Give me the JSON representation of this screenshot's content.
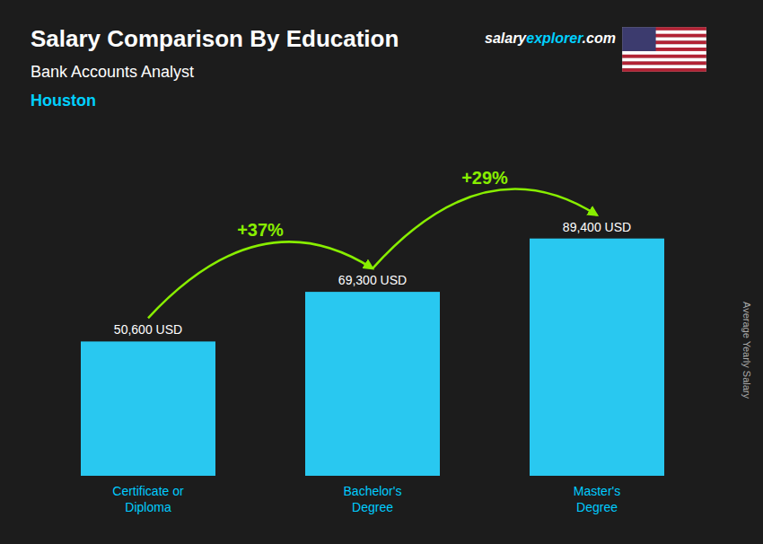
{
  "chart_data": {
    "type": "bar",
    "title": "Salary Comparison By Education",
    "subtitle": "Bank Accounts Analyst",
    "ylabel": "Average Yearly Salary",
    "categories": [
      "Certificate or\nDiploma",
      "Bachelor's\nDegree",
      "Master's\nDegree"
    ],
    "values": [
      50600,
      69300,
      89400
    ],
    "value_labels": [
      "50,600 USD",
      "69,300 USD",
      "89,400 USD"
    ],
    "data_labels": true,
    "color": "#29c8f0",
    "ylim": [
      0,
      115000
    ],
    "tick_labels": "x",
    "grid": false,
    "annotations": [
      {
        "text": "Houston",
        "color": "#00d0ff"
      },
      {
        "text": "salary",
        "color": "#ffffff"
      },
      {
        "text": "explorer",
        "color": "#00d0ff"
      },
      {
        "text": ".com",
        "color": "#ffffff"
      },
      {
        "text": "+37%",
        "color": "#88ee00"
      },
      {
        "text": "+29%",
        "color": "#88ee00"
      }
    ]
  }
}
